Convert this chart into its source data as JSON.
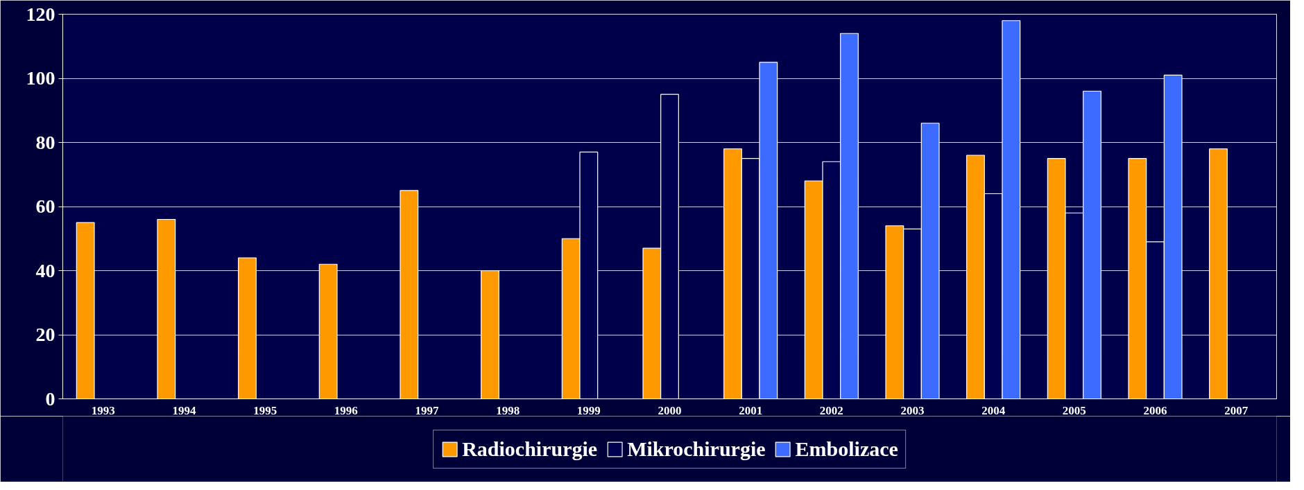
{
  "chart_data": {
    "type": "bar",
    "categories": [
      "1993",
      "1994",
      "1995",
      "1996",
      "1997",
      "1998",
      "1999",
      "2000",
      "2001",
      "2002",
      "2003",
      "2004",
      "2005",
      "2006",
      "2007"
    ],
    "series": [
      {
        "name": "Radiochirurgie",
        "color": "#ff9900",
        "values": [
          55,
          56,
          44,
          42,
          65,
          40,
          50,
          47,
          78,
          68,
          54,
          76,
          75,
          75,
          78
        ]
      },
      {
        "name": "Mikrochirurgie",
        "color": "#000050",
        "values": [
          null,
          null,
          null,
          null,
          null,
          null,
          77,
          95,
          75,
          74,
          53,
          64,
          58,
          49,
          null
        ]
      },
      {
        "name": "Embolizace",
        "color": "#3d6bff",
        "values": [
          null,
          null,
          null,
          null,
          null,
          null,
          null,
          null,
          105,
          114,
          86,
          118,
          96,
          101,
          null
        ]
      }
    ],
    "ylim": [
      0,
      120
    ],
    "yticks": [
      0,
      20,
      40,
      60,
      80,
      100,
      120
    ],
    "grid": "y",
    "legend": "bottom"
  }
}
